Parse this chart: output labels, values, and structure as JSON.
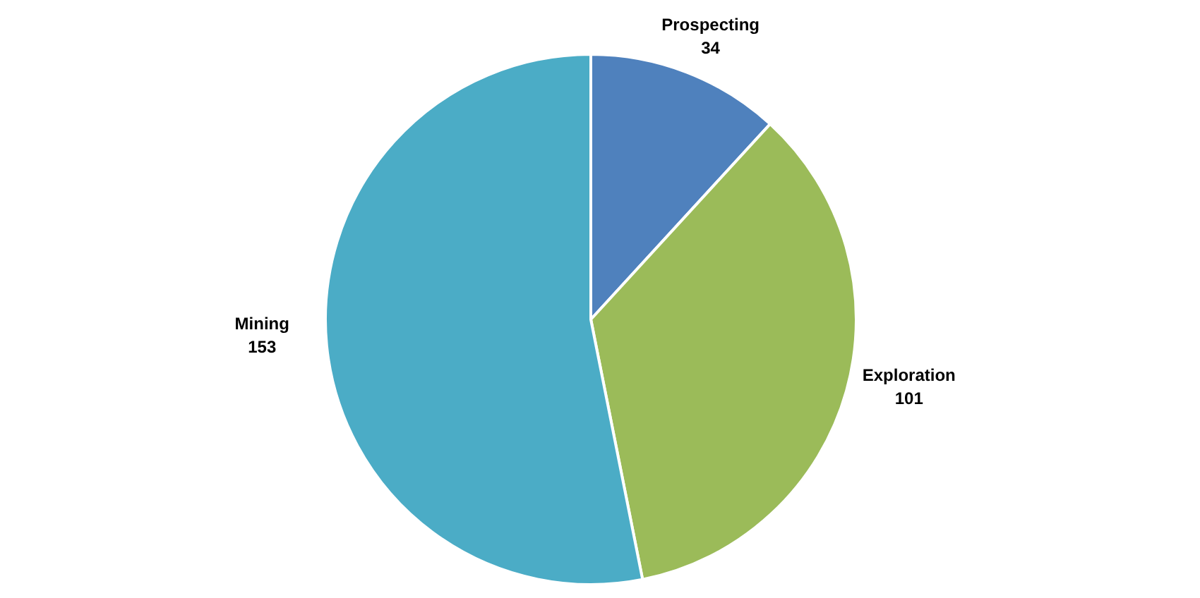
{
  "chart_data": {
    "type": "pie",
    "categories": [
      "Prospecting",
      "Exploration",
      "Mining"
    ],
    "values": [
      34,
      101,
      153
    ],
    "colors": [
      "#4f81bd",
      "#9bbb59",
      "#4bacc6"
    ],
    "data_labels": true
  }
}
